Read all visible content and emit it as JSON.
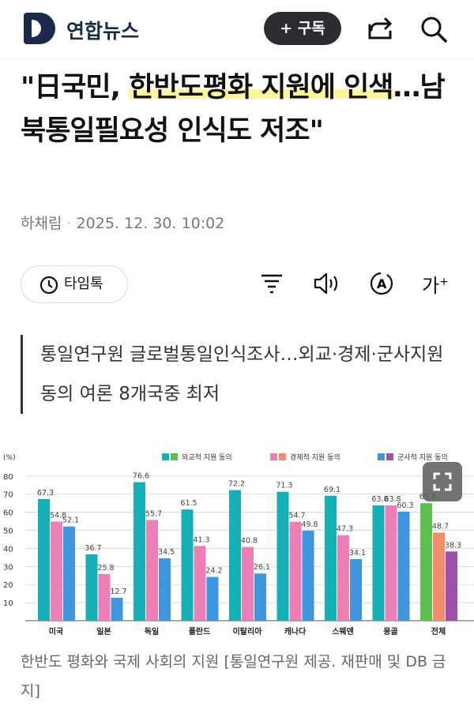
{
  "header": {
    "brand": "연합뉴스",
    "subscribe_label": "+ 구독",
    "icons": [
      "share-icon",
      "search-icon"
    ]
  },
  "article": {
    "title_parts": [
      "\"日국민, ",
      "한반도평화 지원에 인색",
      "…남북통일필요성 인식도 저조\""
    ],
    "author": "하채림",
    "date": "2025. 12. 30. 10:02",
    "timeline_label": "타임톡",
    "subtitle": "통일연구원 글로벌통일인식조사…외교·경제·군사지원 동의 여론 8개국중 최저",
    "caption": "한반도 평화와 국제 사회의 지원 [통일연구원 제공. 재판매 및 DB 금지]"
  },
  "chart_data": {
    "type": "bar",
    "ylabel": "(%)",
    "ylim": [
      0,
      80
    ],
    "yticks": [
      10,
      20,
      30,
      40,
      50,
      60,
      70,
      80
    ],
    "grid": true,
    "legend_position": "top",
    "categories": [
      "미국",
      "일본",
      "독일",
      "폴란드",
      "이탈리아",
      "캐나다",
      "스웨덴",
      "몽골",
      "전체"
    ],
    "series": [
      {
        "name": "외교적 지원 동의",
        "values": [
          67.3,
          36.7,
          76.6,
          61.5,
          72.2,
          71.3,
          69.1,
          63.8,
          65.0
        ],
        "color": "#14b0b6",
        "total_color": "#5cbf4f"
      },
      {
        "name": "경제적 지원 동의",
        "values": [
          54.8,
          25.8,
          55.7,
          41.3,
          40.8,
          54.7,
          47.3,
          63.8,
          48.7
        ],
        "color": "#ec80b6",
        "total_color": "#f28c6b"
      },
      {
        "name": "군사적 지원 동의",
        "values": [
          52.1,
          12.7,
          34.5,
          24.2,
          26.1,
          49.8,
          34.1,
          60.3,
          38.3
        ],
        "color": "#3f96de",
        "total_color": "#9d52a8"
      }
    ]
  }
}
